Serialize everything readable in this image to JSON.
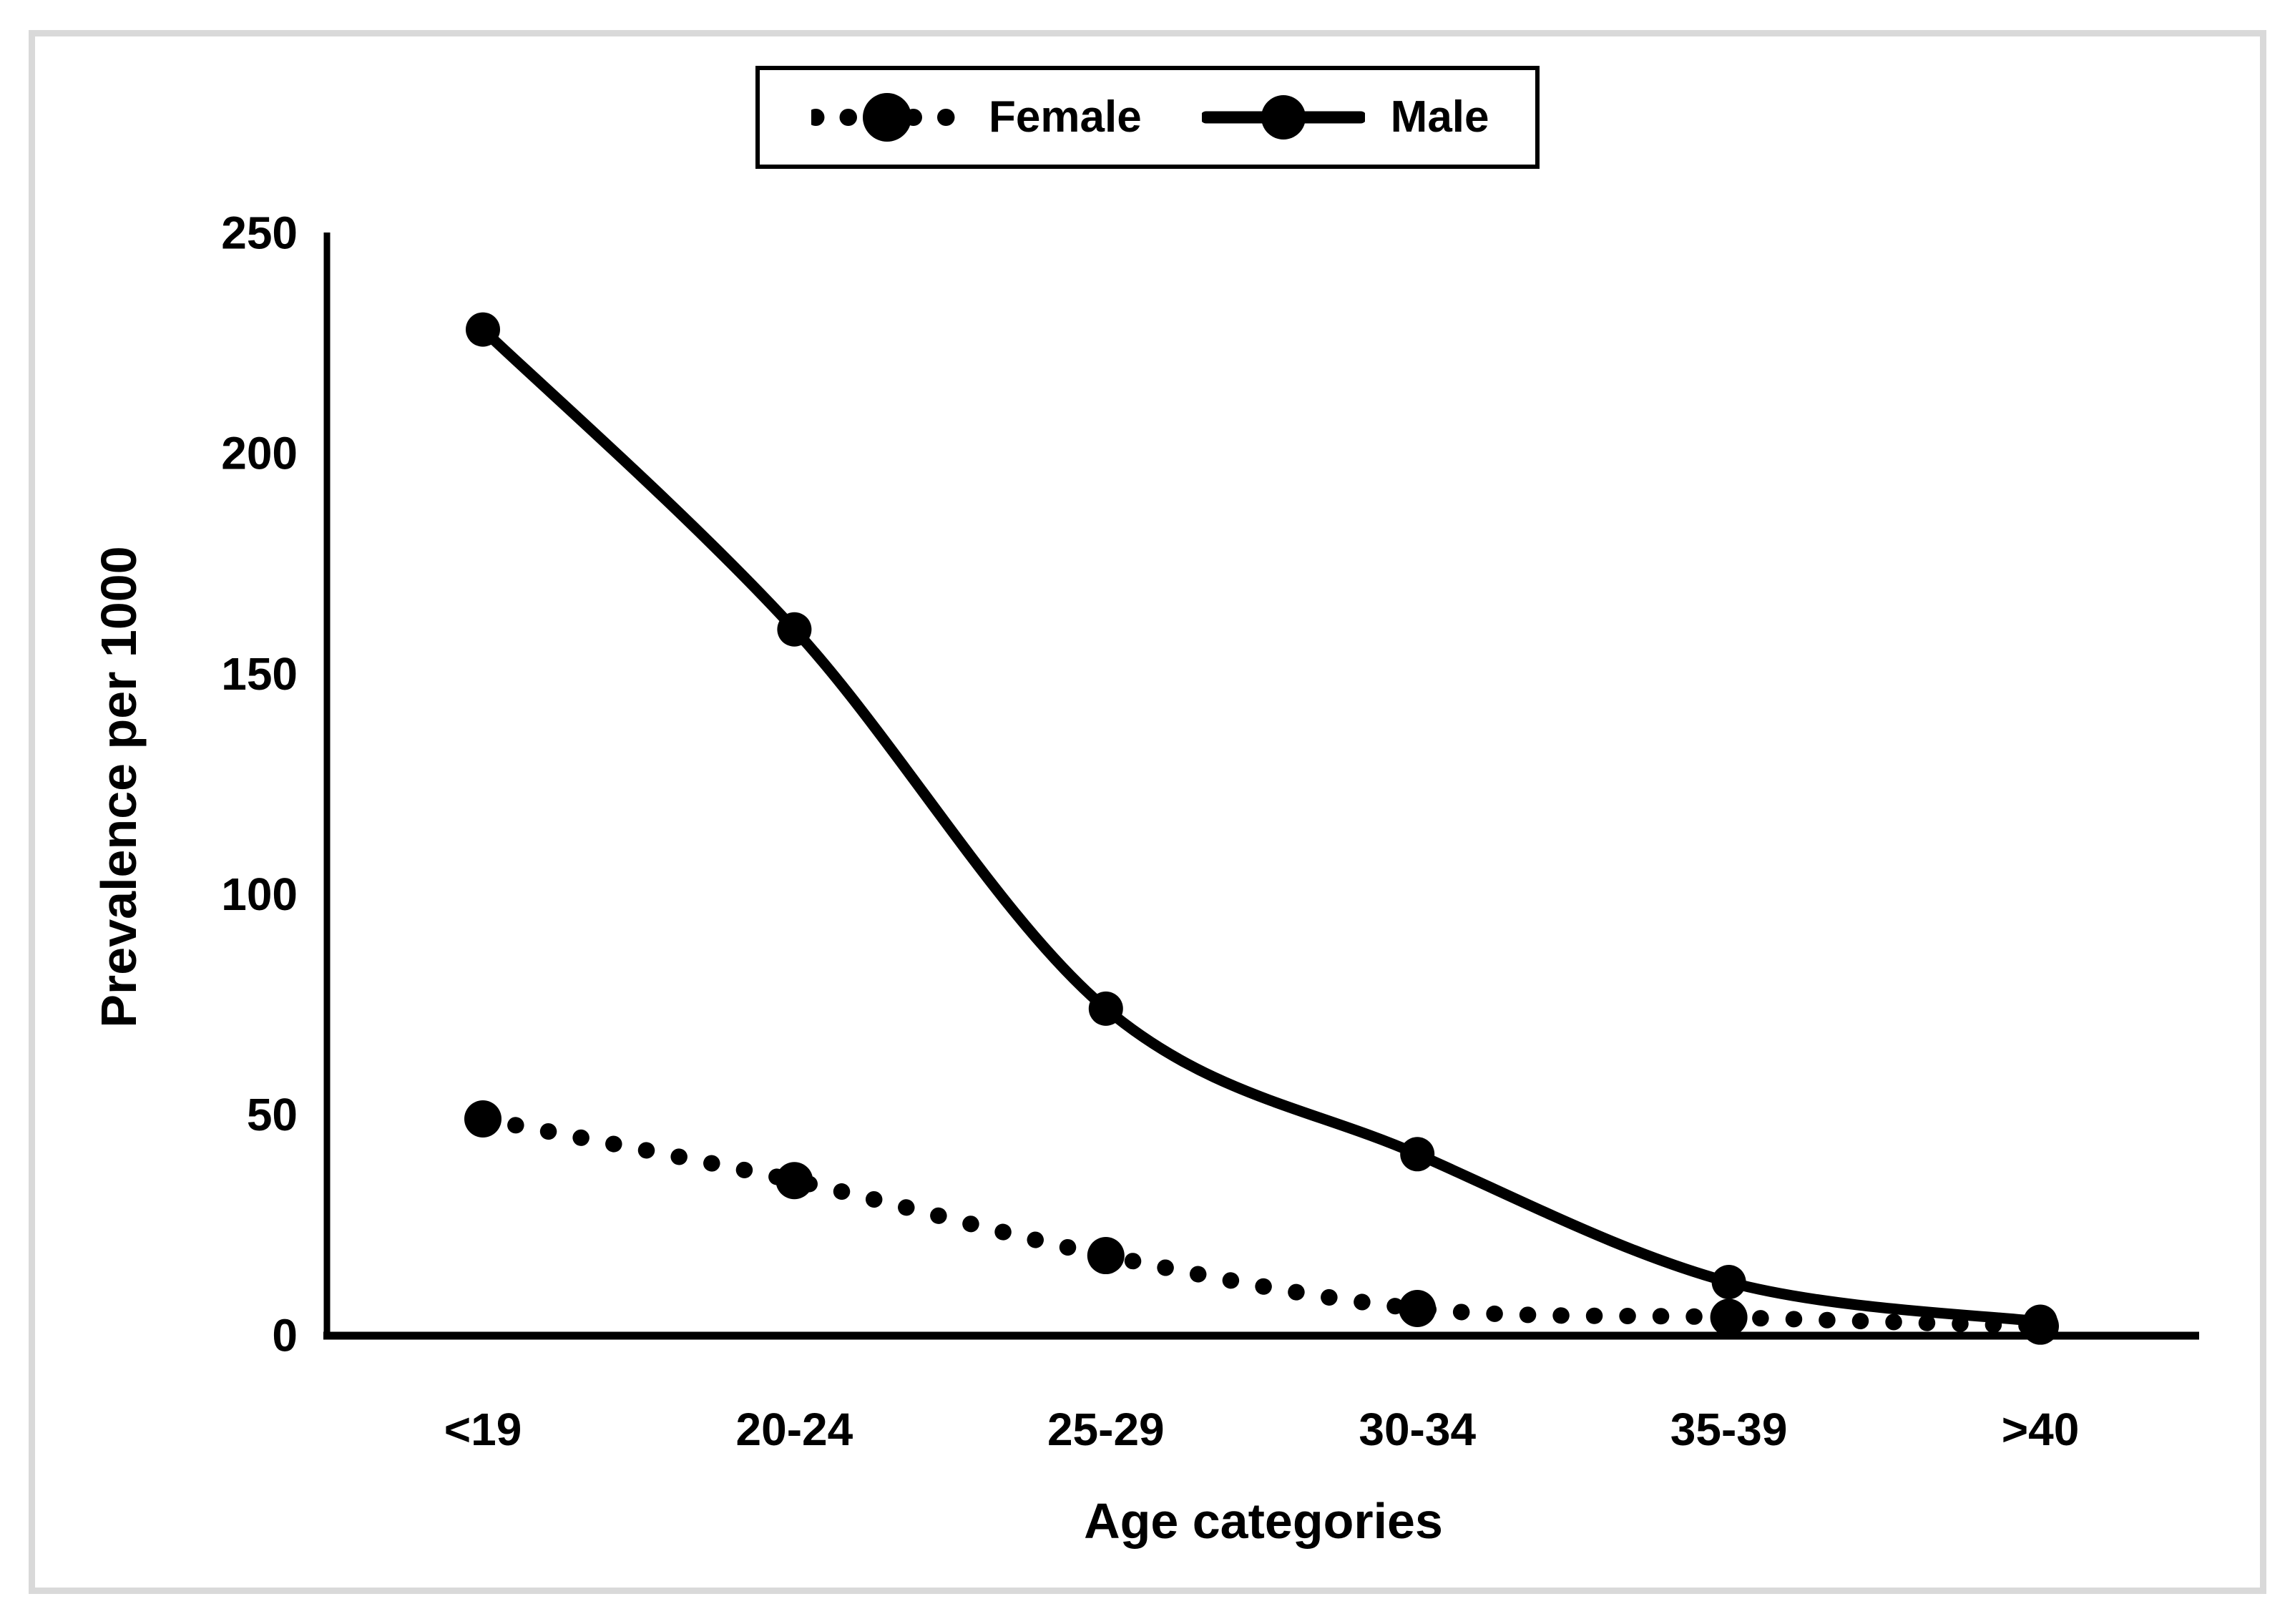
{
  "figure": {
    "frame_border_color": "#d9d9d9",
    "background_color": "#ffffff"
  },
  "legend": {
    "position": "top",
    "items": [
      {
        "label": "Female",
        "sample": "dotted-line-with-circle-marker"
      },
      {
        "label": "Male",
        "sample": "solid-line-with-circle-marker"
      }
    ]
  },
  "chart_data": {
    "type": "line",
    "categories": [
      "<19",
      "20-24",
      "25-29",
      "30-34",
      "35-39",
      ">40"
    ],
    "series": [
      {
        "name": "Female",
        "style": "dotted",
        "marker": "circle",
        "color": "#000000",
        "values": [
          49,
          35,
          18,
          6,
          4,
          2
        ]
      },
      {
        "name": "Male",
        "style": "solid",
        "marker": "circle",
        "color": "#000000",
        "values": [
          228,
          160,
          74,
          41,
          12,
          3
        ]
      }
    ],
    "title": "",
    "xlabel": "Age categories",
    "ylabel": "Prevalence per 1000",
    "ylim": [
      0,
      250
    ],
    "yticks": [
      0,
      50,
      100,
      150,
      200,
      250
    ],
    "grid": false,
    "axis_color": "#000000",
    "legend_position": "top-center"
  }
}
